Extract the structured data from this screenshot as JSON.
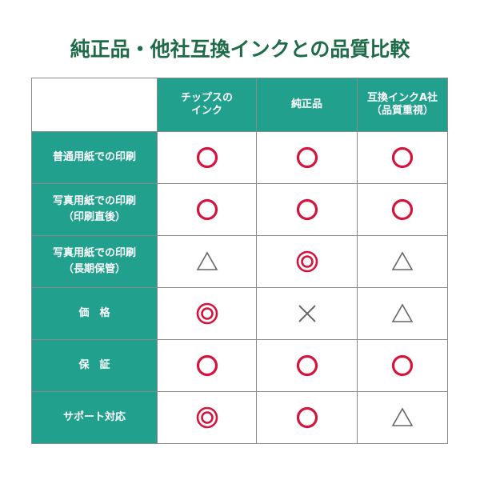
{
  "title": "純正品・他社互換インクとの品質比較",
  "colors": {
    "header_bg": "#21a08d",
    "title": "#1e6b48",
    "good": "#d4143c",
    "neutral": "#666666"
  },
  "columns": [
    "チップスの\nインク",
    "純正品",
    "互換インクA社\n（品質重視）"
  ],
  "rows": [
    {
      "label": "普通用紙での印刷",
      "marks": [
        "circle",
        "circle",
        "circle"
      ]
    },
    {
      "label": "写真用紙での印刷\n（印刷直後）",
      "marks": [
        "circle",
        "circle",
        "circle"
      ]
    },
    {
      "label": "写真用紙での印刷\n（長期保管）",
      "marks": [
        "triangle",
        "double-circle",
        "triangle"
      ]
    },
    {
      "label": "価　格",
      "marks": [
        "double-circle",
        "cross",
        "triangle"
      ]
    },
    {
      "label": "保　証",
      "marks": [
        "circle",
        "circle",
        "circle"
      ]
    },
    {
      "label": "サポート対応",
      "marks": [
        "double-circle",
        "circle",
        "triangle"
      ]
    }
  ]
}
